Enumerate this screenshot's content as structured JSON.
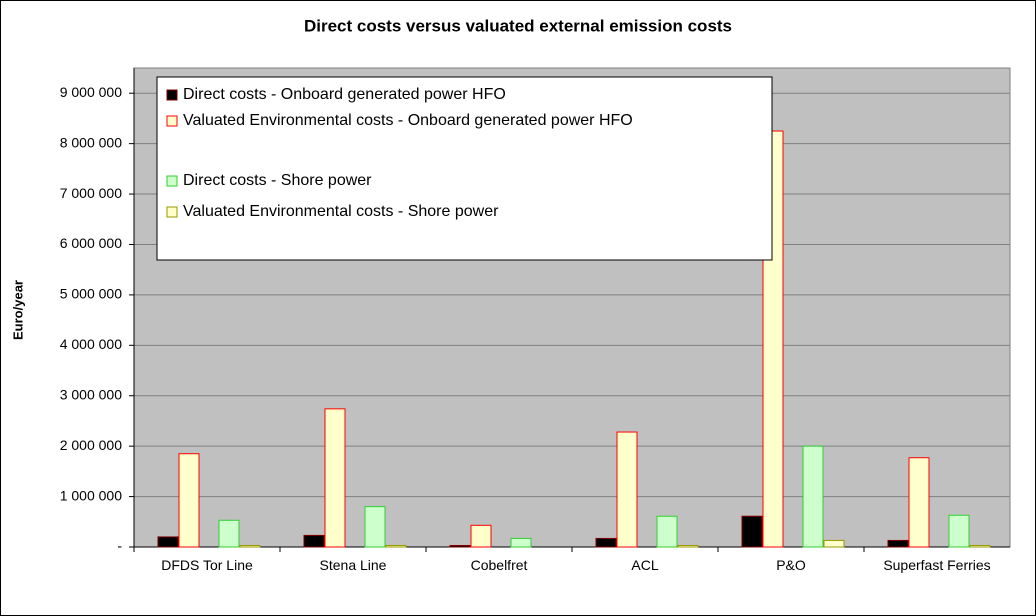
{
  "chart_data": {
    "type": "bar",
    "title": "Direct costs versus valuated external emission costs",
    "y_label": "Euro/year",
    "categories": [
      "DFDS Tor Line",
      "Stena Line",
      "Cobelfret",
      "ACL",
      "P&O",
      "Superfast Ferries"
    ],
    "series": [
      {
        "name": "Direct costs - Onboard generated power HFO",
        "color": "#000000",
        "edgecolor": "#800000",
        "values": [
          200000,
          230000,
          30000,
          170000,
          610000,
          130000
        ]
      },
      {
        "name": "Valuated Environmental costs - Onboard generated power HFO",
        "color": "#FFFFCC",
        "edgecolor": "#FF0000",
        "values": [
          1850000,
          2740000,
          430000,
          2280000,
          8250000,
          1770000
        ]
      },
      {
        "name": "Direct costs - Shore power",
        "color": "#CCFFCC",
        "edgecolor": "#33CC33",
        "values": [
          530000,
          800000,
          170000,
          610000,
          2000000,
          630000
        ]
      },
      {
        "name": "Valuated Environmental costs - Shore power",
        "color": "#FFFFCC",
        "edgecolor": "#999900",
        "values": [
          30000,
          30000,
          0,
          30000,
          130000,
          30000
        ]
      }
    ],
    "ylim": [
      0,
      9500000
    ],
    "yticks": [
      {
        "value": 0,
        "label": "-"
      },
      {
        "value": 1000000,
        "label": "1 000 000"
      },
      {
        "value": 2000000,
        "label": "2 000 000"
      },
      {
        "value": 3000000,
        "label": "3 000 000"
      },
      {
        "value": 4000000,
        "label": "4 000 000"
      },
      {
        "value": 5000000,
        "label": "5 000 000"
      },
      {
        "value": 6000000,
        "label": "6 000 000"
      },
      {
        "value": 7000000,
        "label": "7 000 000"
      },
      {
        "value": 8000000,
        "label": "8 000 000"
      },
      {
        "value": 9000000,
        "label": "9 000 000"
      }
    ],
    "grid": true,
    "legend": "upper left"
  }
}
